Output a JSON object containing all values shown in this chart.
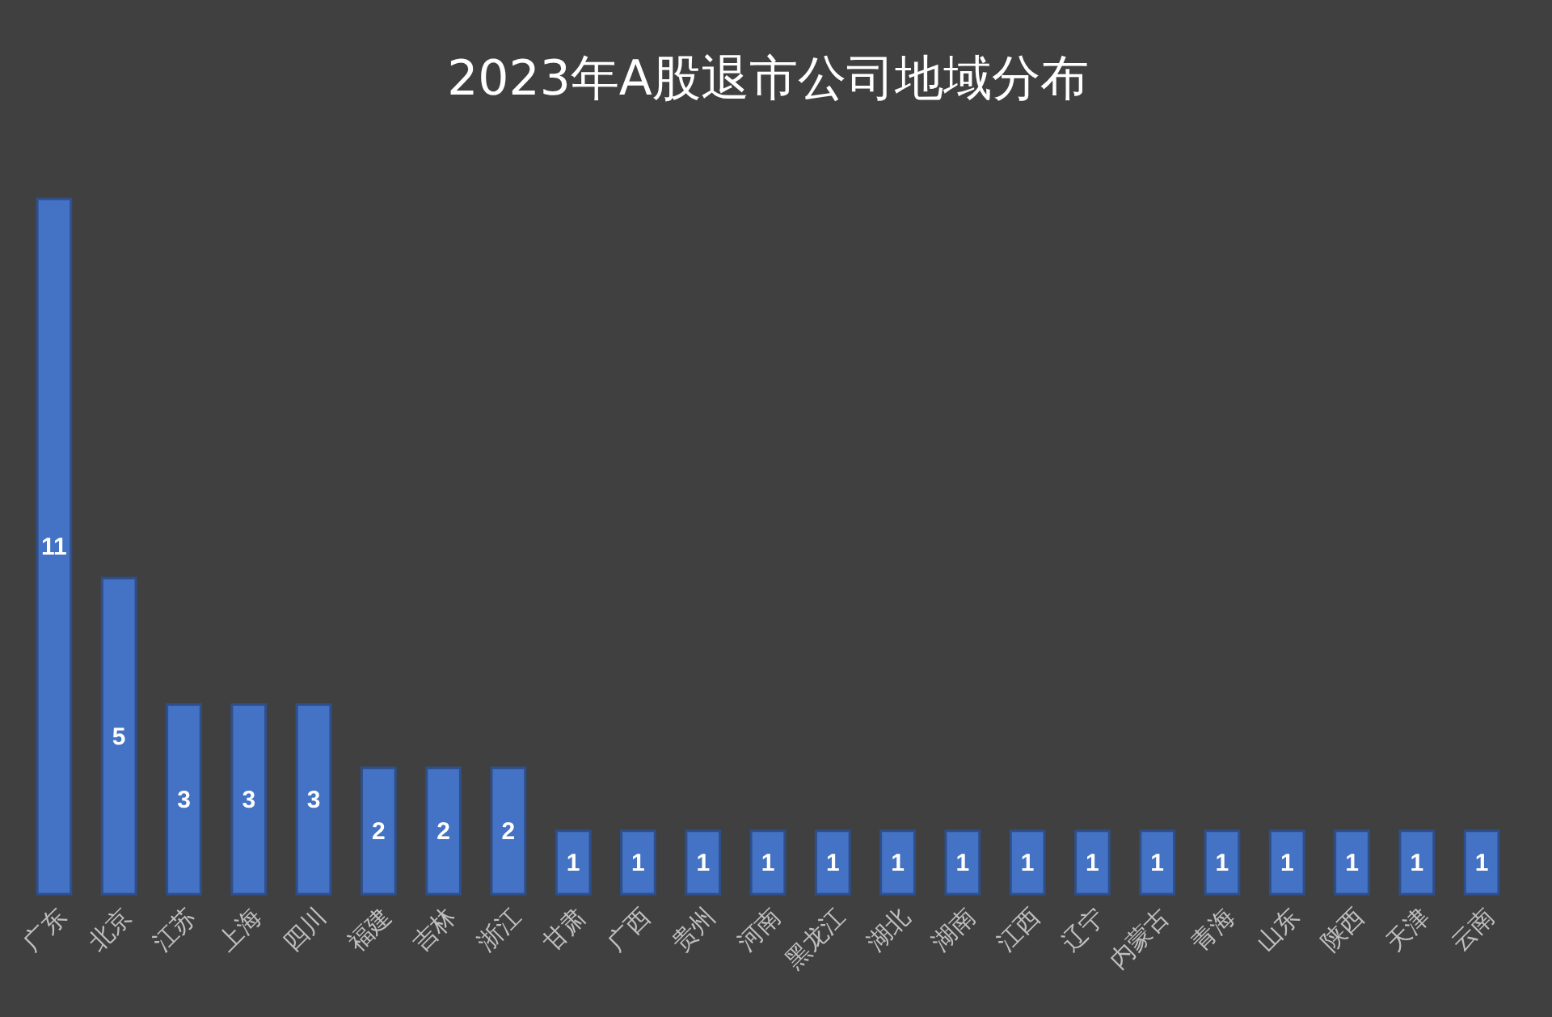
{
  "chart_data": {
    "type": "bar",
    "title": "2023年A股退市公司地域分布",
    "categories": [
      "广东",
      "北京",
      "江苏",
      "上海",
      "四川",
      "福建",
      "吉林",
      "浙江",
      "甘肃",
      "广西",
      "贵州",
      "河南",
      "黑龙江",
      "湖北",
      "湖南",
      "江西",
      "辽宁",
      "内蒙古",
      "青海",
      "山东",
      "陕西",
      "天津",
      "云南"
    ],
    "values": [
      11,
      5,
      3,
      3,
      3,
      2,
      2,
      2,
      1,
      1,
      1,
      1,
      1,
      1,
      1,
      1,
      1,
      1,
      1,
      1,
      1,
      1,
      1
    ],
    "color": "#4472c4",
    "data_labels": true
  }
}
